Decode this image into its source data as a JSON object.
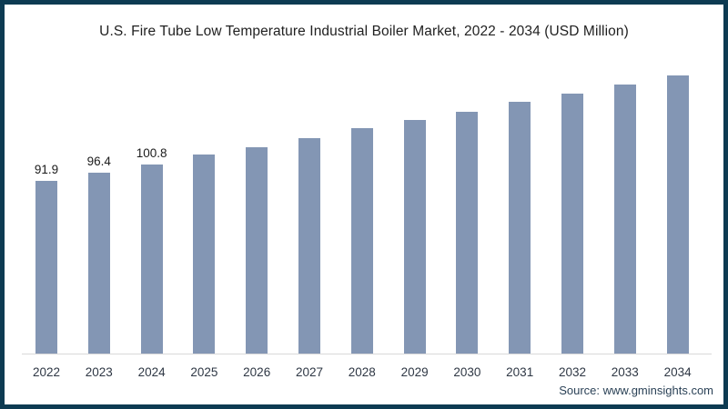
{
  "frame": {
    "border_color": "#0d3b52",
    "background": "#ffffff"
  },
  "chart_data": {
    "type": "bar",
    "title": "U.S. Fire Tube Low Temperature Industrial Boiler Market, 2022 - 2034 (USD Million)",
    "categories": [
      "2022",
      "2023",
      "2024",
      "2025",
      "2026",
      "2027",
      "2028",
      "2029",
      "2030",
      "2031",
      "2032",
      "2033",
      "2034"
    ],
    "values": [
      91.9,
      96.4,
      100.8,
      105.9,
      109.8,
      114.6,
      120.0,
      124.3,
      128.7,
      134.0,
      138.3,
      143.2,
      148.0
    ],
    "data_labels": [
      "91.9",
      "96.4",
      "100.8",
      "",
      "",
      "",
      "",
      "",
      "",
      "",
      "",
      "",
      ""
    ],
    "bar_color": "#8396b4",
    "axis_line_color": "#d9d9d9",
    "xlabel": "",
    "ylabel": "",
    "ylim": [
      0,
      160
    ],
    "grid": false,
    "legend": false
  },
  "source": {
    "text": "Source: www.gminsights.com"
  }
}
